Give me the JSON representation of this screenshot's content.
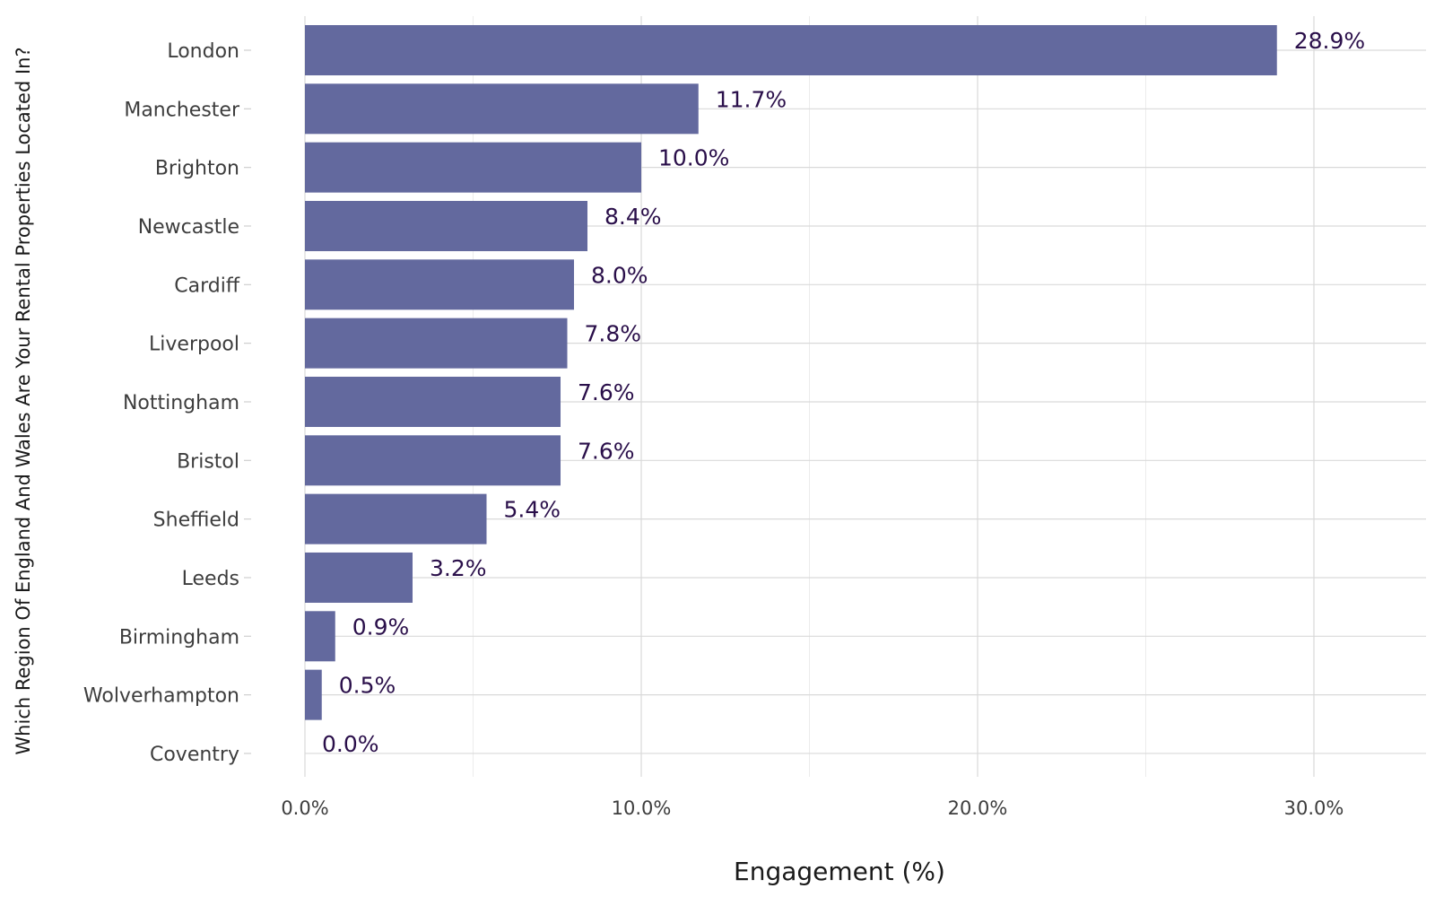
{
  "chart_data": {
    "type": "bar",
    "orientation": "horizontal",
    "categories": [
      "London",
      "Manchester",
      "Brighton",
      "Newcastle",
      "Cardiff",
      "Liverpool",
      "Nottingham",
      "Bristol",
      "Sheffield",
      "Leeds",
      "Birmingham",
      "Wolverhampton",
      "Coventry"
    ],
    "values": [
      28.9,
      11.7,
      10.0,
      8.4,
      8.0,
      7.8,
      7.6,
      7.6,
      5.4,
      3.2,
      0.9,
      0.5,
      0.0
    ],
    "value_labels": [
      "28.9%",
      "11.7%",
      "10.0%",
      "8.4%",
      "8.0%",
      "7.8%",
      "7.6%",
      "7.6%",
      "5.4%",
      "3.2%",
      "0.9%",
      "0.5%",
      "0.0%"
    ],
    "xlabel": "Engagement (%)",
    "ylabel": "Which Region Of England And Wales Are Your Rental Properties Located In?",
    "xlim": [
      0,
      33
    ],
    "x_ticks": [
      0,
      10,
      20,
      30
    ],
    "x_tick_labels": [
      "0.0%",
      "10.0%",
      "20.0%",
      "30.0%"
    ],
    "grid": true,
    "legend": "none",
    "bar_color": "#63699e",
    "label_color": "#2a0f4a"
  }
}
